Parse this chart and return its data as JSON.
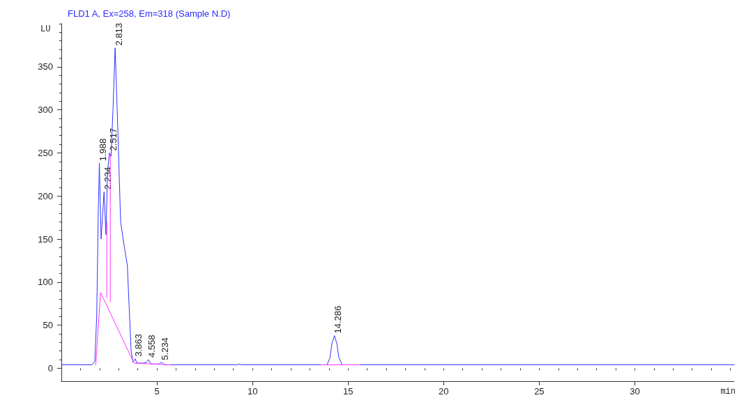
{
  "chart_data": {
    "type": "line",
    "title": "FLD1 A, Ex=258, Em=318 (Sample N.D)",
    "xlabel": "min",
    "ylabel": "LU",
    "xlim": [
      0,
      35.2
    ],
    "xticks": [
      5,
      10,
      15,
      20,
      25,
      30
    ],
    "ylim": [
      -15,
      400
    ],
    "yticks": [
      0,
      50,
      100,
      150,
      200,
      250,
      300,
      350
    ],
    "grid": false,
    "marker": "none",
    "line_style": "solid",
    "series": [
      {
        "color": "#3333ff",
        "x": [
          0,
          1.6,
          1.75,
          1.85,
          1.93,
          1.988,
          2.08,
          2.15,
          2.234,
          2.33,
          2.42,
          2.517,
          2.6,
          2.7,
          2.813,
          2.95,
          3.1,
          3.3,
          3.45,
          3.55,
          3.65,
          3.75,
          3.863,
          3.95,
          4.3,
          4.45,
          4.558,
          4.68,
          5.1,
          5.234,
          5.4,
          9.2,
          9.3,
          9.4,
          13.9,
          14.05,
          14.15,
          14.286,
          14.42,
          14.52,
          14.7,
          35.2
        ],
        "values": [
          4,
          4,
          8,
          60,
          180,
          238,
          150,
          175,
          205,
          155,
          230,
          250,
          246,
          300,
          372,
          280,
          170,
          140,
          120,
          70,
          20,
          7,
          11,
          6,
          6,
          7,
          10,
          5,
          5,
          7,
          4,
          4,
          5,
          4,
          4,
          12,
          28,
          38,
          28,
          12,
          4,
          4
        ]
      },
      {
        "color": "#ff33ff",
        "x": [
          1.8,
          2.05,
          3.8,
          5.7
        ],
        "values": [
          4,
          88,
          6,
          4
        ]
      },
      {
        "color": "#ff33ff",
        "x": [
          2.38,
          2.38
        ],
        "values": [
          82,
          170
        ]
      },
      {
        "color": "#ff33ff",
        "x": [
          2.56,
          2.56
        ],
        "values": [
          77,
          248
        ]
      },
      {
        "color": "#ff33ff",
        "x": [
          13.6,
          15.6
        ],
        "values": [
          4,
          4
        ]
      }
    ],
    "annotations": [
      {
        "text": "1.988",
        "x": 1.988,
        "y": 238
      },
      {
        "text": "2.234",
        "x": 2.234,
        "y": 205
      },
      {
        "text": "2.517",
        "x": 2.517,
        "y": 250
      },
      {
        "text": "2.813",
        "x": 2.813,
        "y": 372
      },
      {
        "text": "3.863",
        "x": 3.863,
        "y": 11
      },
      {
        "text": "4.558",
        "x": 4.558,
        "y": 10
      },
      {
        "text": "5.234",
        "x": 5.234,
        "y": 7
      },
      {
        "text": "14.286",
        "x": 14.286,
        "y": 38
      }
    ]
  }
}
